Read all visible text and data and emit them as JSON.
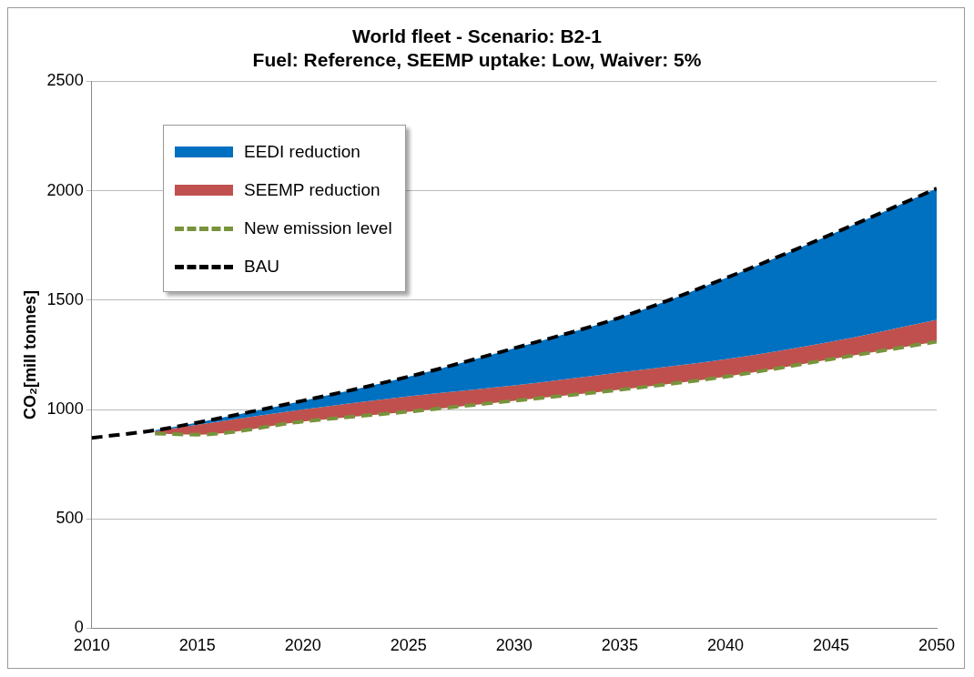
{
  "chart_data": {
    "type": "line",
    "title": "World fleet - Scenario: B2-1",
    "subtitle": "Fuel: Reference, SEEMP uptake: Low, Waiver: 5%",
    "ylabel": "CO₂[mill tonnes]",
    "x": [
      2010,
      2013,
      2015,
      2020,
      2025,
      2030,
      2035,
      2040,
      2045,
      2050
    ],
    "series": [
      {
        "name": "EEDI reduction",
        "type": "area",
        "color": "#0070c0",
        "values": [
          null,
          905,
          940,
          1040,
          1150,
          1280,
          1420,
          1600,
          1800,
          2010
        ]
      },
      {
        "name": "SEEMP reduction",
        "type": "area",
        "color": "#c0504d",
        "values": [
          null,
          900,
          930,
          1000,
          1060,
          1110,
          1170,
          1230,
          1310,
          1410
        ]
      },
      {
        "name": "New emission level",
        "line_style": "dashed",
        "color": "#77933c",
        "values": [
          null,
          890,
          885,
          945,
          990,
          1040,
          1090,
          1150,
          1230,
          1310
        ]
      },
      {
        "name": "BAU",
        "line_style": "dashed",
        "color": "#000000",
        "values": [
          870,
          905,
          940,
          1040,
          1150,
          1280,
          1420,
          1600,
          1800,
          2010
        ]
      }
    ],
    "xlim": [
      2010,
      2050
    ],
    "xticks": [
      2010,
      2015,
      2020,
      2025,
      2030,
      2035,
      2040,
      2045,
      2050
    ],
    "ylim": [
      0,
      2500
    ],
    "yticks": [
      0,
      500,
      1000,
      1500,
      2000,
      2500
    ],
    "grid": "y",
    "legend": "top left",
    "marker": "none"
  }
}
